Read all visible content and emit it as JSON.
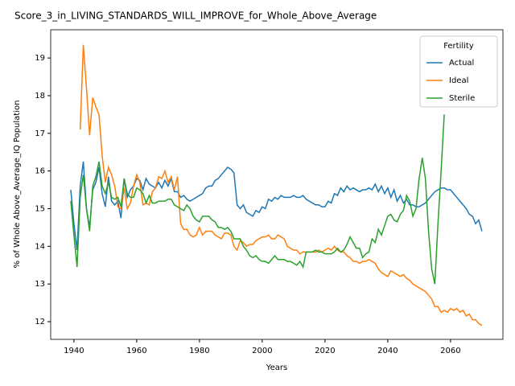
{
  "chart_data": {
    "type": "line",
    "title": "Score_3_in_LIVING_STANDARDS_WILL_IMPROVE_for_Whole_Above_Average",
    "xlabel": "Years",
    "ylabel": "% of Whole Above_Average_IQ Population",
    "legend_title": "Fertility",
    "legend": "upper right",
    "grid": false,
    "x": [
      1939,
      1940,
      1941,
      1942,
      1943,
      1944,
      1945,
      1946,
      1947,
      1948,
      1949,
      1950,
      1951,
      1952,
      1953,
      1954,
      1955,
      1956,
      1957,
      1958,
      1959,
      1960,
      1961,
      1962,
      1963,
      1964,
      1965,
      1966,
      1967,
      1968,
      1969,
      1970,
      1971,
      1972,
      1973,
      1974,
      1975,
      1976,
      1977,
      1978,
      1979,
      1980,
      1981,
      1982,
      1983,
      1984,
      1985,
      1986,
      1987,
      1988,
      1989,
      1990,
      1991,
      1992,
      1993,
      1994,
      1995,
      1996,
      1997,
      1998,
      1999,
      2000,
      2001,
      2002,
      2003,
      2004,
      2005,
      2006,
      2007,
      2008,
      2009,
      2010,
      2011,
      2012,
      2013,
      2014,
      2015,
      2016,
      2017,
      2018,
      2019,
      2020,
      2021,
      2022,
      2023,
      2024,
      2025,
      2026,
      2027,
      2028,
      2029,
      2030,
      2031,
      2032,
      2033,
      2034,
      2035,
      2036,
      2037,
      2038,
      2039,
      2040,
      2041,
      2042,
      2043,
      2044,
      2045,
      2046,
      2047,
      2048,
      2049,
      2050,
      2051,
      2052,
      2053,
      2054,
      2055,
      2056,
      2057,
      2058,
      2059,
      2060,
      2061,
      2062,
      2063,
      2064,
      2065,
      2066,
      2067,
      2068,
      2069,
      2070
    ],
    "xlim": [
      1932.6,
      2076.7
    ],
    "xticks": [
      1940,
      1960,
      1980,
      2000,
      2020,
      2040,
      2060
    ],
    "ylim": [
      11.53,
      19.75
    ],
    "yticks": [
      12,
      13,
      14,
      15,
      16,
      17,
      18,
      19
    ],
    "series": [
      {
        "name": "Actual",
        "color": "#1f77b4",
        "values": [
          15.5,
          14.6,
          13.9,
          15.6,
          16.25,
          15.0,
          14.5,
          15.5,
          15.7,
          16.1,
          15.4,
          15.05,
          15.85,
          15.2,
          15.1,
          15.2,
          14.75,
          15.8,
          15.3,
          15.5,
          15.6,
          15.8,
          15.75,
          15.5,
          15.8,
          15.65,
          15.6,
          15.55,
          15.7,
          15.55,
          15.75,
          15.6,
          15.8,
          15.45,
          15.45,
          15.3,
          15.35,
          15.25,
          15.2,
          15.25,
          15.3,
          15.35,
          15.4,
          15.55,
          15.6,
          15.6,
          15.75,
          15.8,
          15.9,
          16.0,
          16.1,
          16.05,
          15.95,
          15.1,
          15.0,
          15.1,
          14.9,
          14.85,
          14.8,
          14.95,
          14.9,
          15.05,
          15.0,
          15.25,
          15.2,
          15.3,
          15.25,
          15.35,
          15.3,
          15.3,
          15.3,
          15.35,
          15.3,
          15.3,
          15.35,
          15.25,
          15.2,
          15.15,
          15.1,
          15.1,
          15.05,
          15.05,
          15.2,
          15.15,
          15.4,
          15.35,
          15.55,
          15.45,
          15.6,
          15.5,
          15.55,
          15.5,
          15.45,
          15.5,
          15.5,
          15.55,
          15.5,
          15.65,
          15.45,
          15.6,
          15.4,
          15.55,
          15.3,
          15.5,
          15.2,
          15.35,
          15.15,
          15.25,
          15.1,
          15.1,
          15.05,
          15.05,
          15.1,
          15.15,
          15.25,
          15.35,
          15.45,
          15.5,
          15.55,
          15.55,
          15.5,
          15.5,
          15.4,
          15.3,
          15.2,
          15.1,
          15.0,
          14.85,
          14.8,
          14.6,
          14.7,
          14.4
        ]
      },
      {
        "name": "Ideal",
        "color": "#ff7f0e",
        "values": [
          null,
          null,
          null,
          17.1,
          19.35,
          18.2,
          16.95,
          17.95,
          17.7,
          17.5,
          16.4,
          15.7,
          16.1,
          15.9,
          15.6,
          15.05,
          15.0,
          15.55,
          15.0,
          15.15,
          15.6,
          15.9,
          15.7,
          15.1,
          15.15,
          15.1,
          15.45,
          15.55,
          15.85,
          15.8,
          16.0,
          15.7,
          15.85,
          15.5,
          15.85,
          14.6,
          14.45,
          14.45,
          14.3,
          14.25,
          14.3,
          14.5,
          14.3,
          14.4,
          14.4,
          14.4,
          14.3,
          14.25,
          14.2,
          14.35,
          14.35,
          14.3,
          14.0,
          13.9,
          14.15,
          14.1,
          14.0,
          14.05,
          14.05,
          14.15,
          14.2,
          14.25,
          14.25,
          14.3,
          14.2,
          14.2,
          14.3,
          14.25,
          14.2,
          14.0,
          13.95,
          13.9,
          13.9,
          13.8,
          13.85,
          13.85,
          13.85,
          13.85,
          13.85,
          13.9,
          13.85,
          13.9,
          13.95,
          13.9,
          14.0,
          13.9,
          13.85,
          13.85,
          13.75,
          13.7,
          13.6,
          13.6,
          13.55,
          13.6,
          13.6,
          13.65,
          13.6,
          13.55,
          13.4,
          13.3,
          13.25,
          13.2,
          13.35,
          13.3,
          13.25,
          13.2,
          13.25,
          13.15,
          13.1,
          13.0,
          12.95,
          12.9,
          12.85,
          12.8,
          12.7,
          12.6,
          12.4,
          12.4,
          12.25,
          12.3,
          12.25,
          12.35,
          12.3,
          12.35,
          12.25,
          12.3,
          12.15,
          12.2,
          12.05,
          12.05,
          11.95,
          11.9
        ]
      },
      {
        "name": "Sterile",
        "color": "#2ca02c",
        "values": [
          15.2,
          14.3,
          13.45,
          15.3,
          15.9,
          15.0,
          14.4,
          15.6,
          15.85,
          16.25,
          15.6,
          15.4,
          15.7,
          15.3,
          15.25,
          15.3,
          15.05,
          15.8,
          15.4,
          15.3,
          15.3,
          15.55,
          15.5,
          15.4,
          15.15,
          15.35,
          15.15,
          15.15,
          15.2,
          15.2,
          15.2,
          15.25,
          15.25,
          15.1,
          15.05,
          15.0,
          14.95,
          15.1,
          15.0,
          14.8,
          14.7,
          14.65,
          14.8,
          14.8,
          14.8,
          14.7,
          14.65,
          14.5,
          14.5,
          14.45,
          14.5,
          14.4,
          14.2,
          14.2,
          14.2,
          14.0,
          13.9,
          13.75,
          13.7,
          13.75,
          13.65,
          13.6,
          13.6,
          13.55,
          13.65,
          13.75,
          13.65,
          13.65,
          13.65,
          13.6,
          13.6,
          13.55,
          13.5,
          13.6,
          13.45,
          13.85,
          13.85,
          13.85,
          13.9,
          13.85,
          13.85,
          13.8,
          13.8,
          13.8,
          13.85,
          13.95,
          13.85,
          13.9,
          14.05,
          14.25,
          14.1,
          13.95,
          13.95,
          13.7,
          13.8,
          13.85,
          14.2,
          14.1,
          14.45,
          14.3,
          14.55,
          14.8,
          14.85,
          14.7,
          14.65,
          14.85,
          14.95,
          15.35,
          15.2,
          14.8,
          15.0,
          15.8,
          16.35,
          15.8,
          14.4,
          13.4,
          13.0,
          14.6,
          16.0,
          17.5,
          null,
          null,
          null,
          null,
          null,
          null,
          null,
          null,
          null,
          null,
          null,
          null
        ]
      }
    ]
  }
}
